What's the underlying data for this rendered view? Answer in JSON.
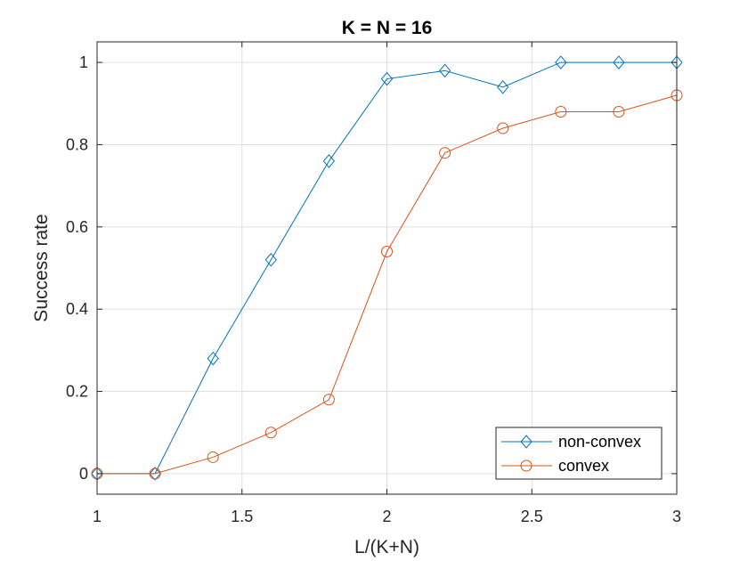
{
  "chart_data": {
    "type": "line",
    "title": "K = N = 16",
    "xlabel": "L/(K+N)",
    "ylabel": "Success rate",
    "xlim": [
      1,
      3
    ],
    "ylim": [
      -0.05,
      1.05
    ],
    "xticks": [
      1,
      1.5,
      2,
      2.5,
      3
    ],
    "xtick_labels": [
      "1",
      "1.5",
      "2",
      "2.5",
      "3"
    ],
    "yticks": [
      0,
      0.2,
      0.4,
      0.6,
      0.8,
      1
    ],
    "ytick_labels": [
      "0",
      "0.2",
      "0.4",
      "0.6",
      "0.8",
      "1"
    ],
    "grid": true,
    "legend_position": "bottom-right",
    "x": [
      1,
      1.2,
      1.4,
      1.6,
      1.8,
      2,
      2.2,
      2.4,
      2.6,
      2.8,
      3
    ],
    "series": [
      {
        "name": "non-convex",
        "marker": "diamond",
        "color": "#0072BD",
        "values": [
          0,
          0,
          0.28,
          0.52,
          0.76,
          0.96,
          0.98,
          0.94,
          1,
          1,
          1
        ]
      },
      {
        "name": "convex",
        "marker": "circle",
        "color": "#D95319",
        "values": [
          0,
          0,
          0.04,
          0.1,
          0.18,
          0.54,
          0.78,
          0.84,
          0.88,
          0.88,
          0.92
        ]
      }
    ]
  }
}
